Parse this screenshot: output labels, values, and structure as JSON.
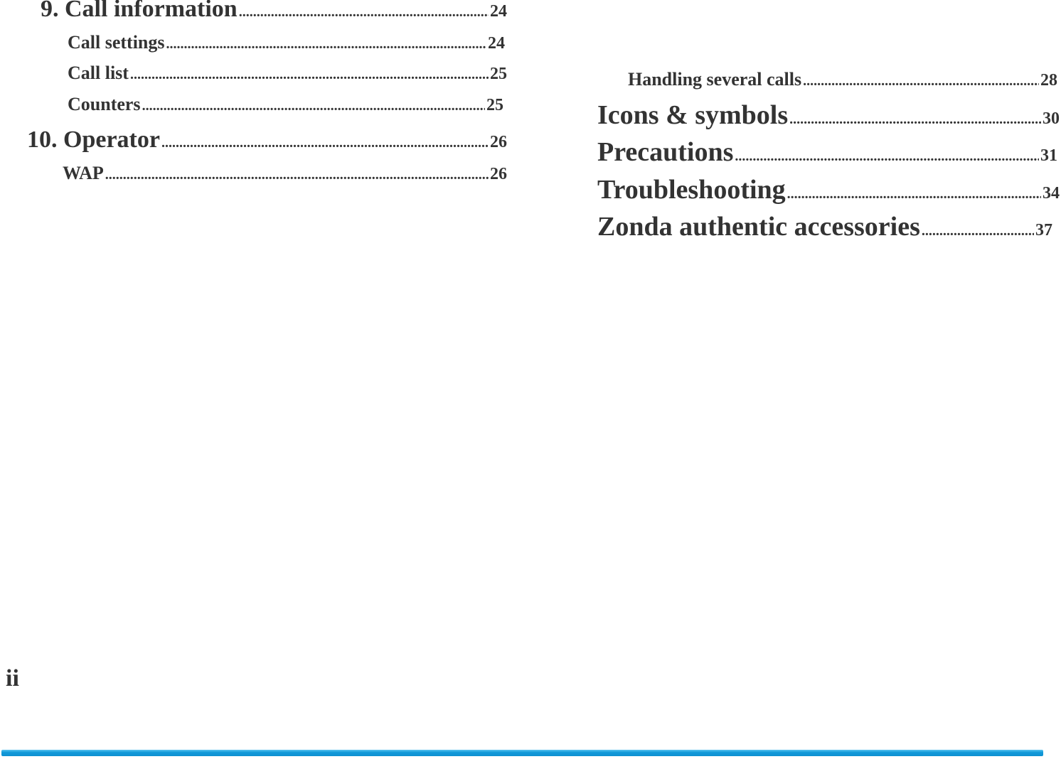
{
  "left_column": [
    {
      "label": "9. Call information",
      "page": "24"
    },
    {
      "label": "Call settings",
      "page": "24"
    },
    {
      "label": "Call list",
      "page": "25"
    },
    {
      "label": "Counters",
      "page": "25"
    },
    {
      "label": "10. Operator",
      "page": "26"
    },
    {
      "label": "WAP",
      "page": "26"
    }
  ],
  "right_column": [
    {
      "label": "Handling several calls",
      "page": "28"
    },
    {
      "label": "Icons & symbols",
      "page": "30"
    },
    {
      "label": "Precautions",
      "page": "31"
    },
    {
      "label": "Troubleshooting",
      "page": "34"
    },
    {
      "label": "Zonda authentic accessories",
      "page": "37"
    }
  ],
  "page_number": "ii",
  "colors": {
    "text": "#333333",
    "footer_bar": "#129ad9"
  }
}
